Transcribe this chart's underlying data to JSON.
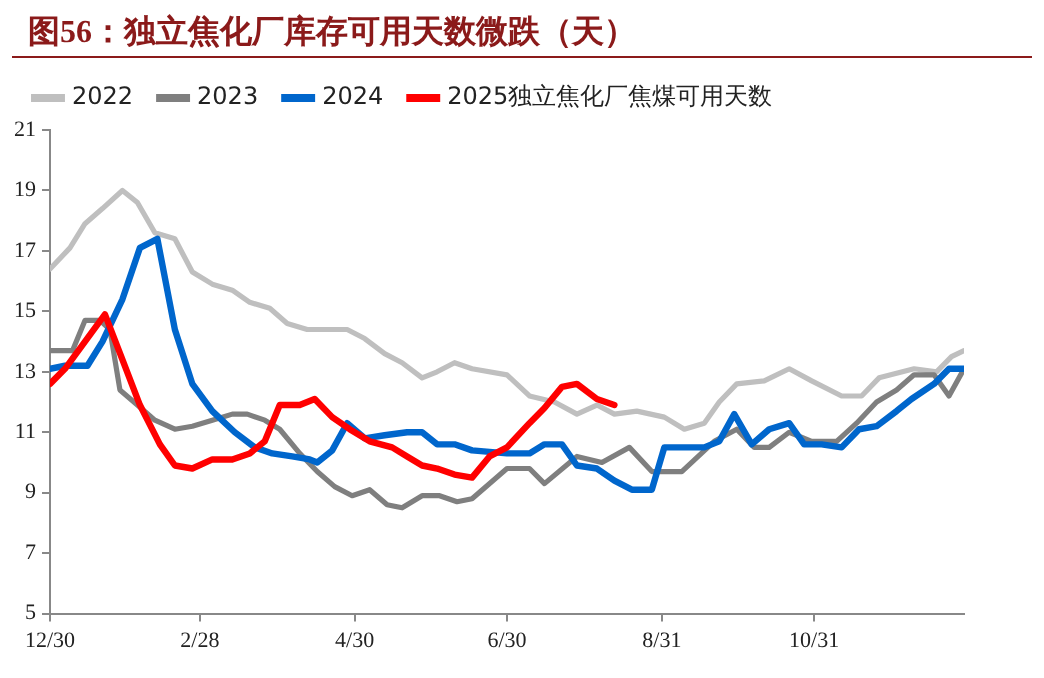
{
  "chart_data": {
    "type": "line",
    "title": "图56：独立焦化厂库存可用天数微跌（天）",
    "xlim": [
      "2023-12-30",
      "2024-12-30"
    ],
    "xticks": [
      {
        "value": "2023-12-30",
        "label": "12/30"
      },
      {
        "value": "2024-02-28",
        "label": "2/28"
      },
      {
        "value": "2024-04-30",
        "label": "4/30"
      },
      {
        "value": "2024-06-30",
        "label": "6/30"
      },
      {
        "value": "2024-08-31",
        "label": "8/31"
      },
      {
        "value": "2024-10-31",
        "label": "10/31"
      }
    ],
    "ylim": [
      5,
      21
    ],
    "yticks": [
      5,
      7,
      9,
      11,
      13,
      15,
      17,
      19,
      21
    ],
    "grid": false,
    "legend": "top",
    "marker": "none",
    "line_style": "solid",
    "series": [
      {
        "name": "2022",
        "color": "#bfbfbf",
        "x": [
          "2023-12-30",
          "2024-01-07",
          "2024-01-13",
          "2024-01-20",
          "2024-01-28",
          "2024-02-03",
          "2024-02-10",
          "2024-02-18",
          "2024-02-25",
          "2024-03-04",
          "2024-03-12",
          "2024-03-19",
          "2024-03-27",
          "2024-04-03",
          "2024-04-11",
          "2024-04-18",
          "2024-04-27",
          "2024-05-04",
          "2024-05-12",
          "2024-05-19",
          "2024-05-27",
          "2024-06-02",
          "2024-06-09",
          "2024-06-16",
          "2024-06-30",
          "2024-07-09",
          "2024-07-19",
          "2024-07-28",
          "2024-08-05",
          "2024-08-12",
          "2024-08-21",
          "2024-09-01",
          "2024-09-09",
          "2024-09-17",
          "2024-09-23",
          "2024-09-30",
          "2024-10-11",
          "2024-10-21",
          "2024-10-30",
          "2024-11-11",
          "2024-11-19",
          "2024-11-26",
          "2024-12-10",
          "2024-12-19",
          "2024-12-25",
          "2024-12-30"
        ],
        "values": [
          16.4,
          17.1,
          17.9,
          18.4,
          19.0,
          18.6,
          17.6,
          17.4,
          16.3,
          15.9,
          15.7,
          15.3,
          15.1,
          14.6,
          14.4,
          14.4,
          14.4,
          14.1,
          13.6,
          13.3,
          12.8,
          13.0,
          13.3,
          13.1,
          12.9,
          12.2,
          12.0,
          11.6,
          11.9,
          11.6,
          11.7,
          11.5,
          11.1,
          11.3,
          12.0,
          12.6,
          12.7,
          13.1,
          12.7,
          12.2,
          12.2,
          12.8,
          13.1,
          13.0,
          13.5,
          13.7
        ]
      },
      {
        "name": "2023",
        "color": "#7f7f7f",
        "x": [
          "2023-12-30",
          "2024-01-08",
          "2024-01-13",
          "2024-01-19",
          "2024-01-23",
          "2024-01-27",
          "2024-02-03",
          "2024-02-10",
          "2024-02-18",
          "2024-02-25",
          "2024-03-04",
          "2024-03-12",
          "2024-03-18",
          "2024-03-25",
          "2024-03-31",
          "2024-04-08",
          "2024-04-15",
          "2024-04-22",
          "2024-04-29",
          "2024-05-06",
          "2024-05-13",
          "2024-05-19",
          "2024-05-27",
          "2024-06-03",
          "2024-06-10",
          "2024-06-16",
          "2024-06-30",
          "2024-07-09",
          "2024-07-15",
          "2024-07-28",
          "2024-08-07",
          "2024-08-18",
          "2024-08-27",
          "2024-09-08",
          "2024-09-21",
          "2024-09-30",
          "2024-10-07",
          "2024-10-13",
          "2024-10-21",
          "2024-10-30",
          "2024-11-09",
          "2024-11-17",
          "2024-11-25",
          "2024-12-03",
          "2024-12-10",
          "2024-12-18",
          "2024-12-24",
          "2024-12-30"
        ],
        "values": [
          13.7,
          13.7,
          14.7,
          14.7,
          14.4,
          12.4,
          11.9,
          11.4,
          11.1,
          11.2,
          11.4,
          11.6,
          11.6,
          11.4,
          11.1,
          10.3,
          9.7,
          9.2,
          8.9,
          9.1,
          8.6,
          8.5,
          8.9,
          8.9,
          8.7,
          8.8,
          9.8,
          9.8,
          9.3,
          10.2,
          10.0,
          10.5,
          9.7,
          9.7,
          10.7,
          11.1,
          10.5,
          10.5,
          11.0,
          10.7,
          10.7,
          11.3,
          12.0,
          12.4,
          12.9,
          12.9,
          12.2,
          13.1
        ]
      },
      {
        "name": "2024",
        "color": "#0066cc",
        "x": [
          "2023-12-30",
          "2024-01-05",
          "2024-01-14",
          "2024-01-20",
          "2024-01-28",
          "2024-02-04",
          "2024-02-11",
          "2024-02-18",
          "2024-02-25",
          "2024-03-04",
          "2024-03-13",
          "2024-03-21",
          "2024-03-28",
          "2024-04-05",
          "2024-04-12",
          "2024-04-15",
          "2024-04-21",
          "2024-04-27",
          "2024-05-04",
          "2024-05-12",
          "2024-05-21",
          "2024-05-27",
          "2024-06-02",
          "2024-06-09",
          "2024-06-16",
          "2024-06-30",
          "2024-07-09",
          "2024-07-15",
          "2024-07-22",
          "2024-07-28",
          "2024-08-05",
          "2024-08-12",
          "2024-08-19",
          "2024-08-27",
          "2024-09-01",
          "2024-09-17",
          "2024-09-23",
          "2024-09-29",
          "2024-10-06",
          "2024-10-13",
          "2024-10-21",
          "2024-10-27",
          "2024-11-03",
          "2024-11-11",
          "2024-11-18",
          "2024-11-25",
          "2024-12-03",
          "2024-12-09",
          "2024-12-18",
          "2024-12-24",
          "2024-12-30"
        ],
        "values": [
          13.1,
          13.2,
          13.2,
          14.0,
          15.4,
          17.1,
          17.4,
          14.4,
          12.6,
          11.7,
          11.0,
          10.5,
          10.3,
          10.2,
          10.1,
          10.0,
          10.4,
          11.3,
          10.8,
          10.9,
          11.0,
          11.0,
          10.6,
          10.6,
          10.4,
          10.3,
          10.3,
          10.6,
          10.6,
          9.9,
          9.8,
          9.4,
          9.1,
          9.1,
          10.5,
          10.5,
          10.7,
          11.6,
          10.6,
          11.1,
          11.3,
          10.6,
          10.6,
          10.5,
          11.1,
          11.2,
          11.7,
          12.1,
          12.6,
          13.1,
          13.1
        ]
      },
      {
        "name": "2025独立焦化厂焦煤可用天数",
        "color": "#ff0000",
        "x": [
          "2023-12-30",
          "2024-01-05",
          "2024-01-13",
          "2024-01-21",
          "2024-01-28",
          "2024-02-04",
          "2024-02-12",
          "2024-02-18",
          "2024-02-25",
          "2024-03-04",
          "2024-03-12",
          "2024-03-19",
          "2024-03-25",
          "2024-03-31",
          "2024-04-08",
          "2024-04-14",
          "2024-04-21",
          "2024-04-28",
          "2024-05-06",
          "2024-05-15",
          "2024-05-21",
          "2024-05-27",
          "2024-06-02",
          "2024-06-09",
          "2024-06-16",
          "2024-06-23",
          "2024-06-30",
          "2024-07-09",
          "2024-07-15",
          "2024-07-22",
          "2024-07-28",
          "2024-08-05",
          "2024-08-12"
        ],
        "values": [
          12.6,
          13.1,
          14.0,
          14.9,
          13.4,
          11.9,
          10.6,
          9.9,
          9.8,
          10.1,
          10.1,
          10.3,
          10.7,
          11.9,
          11.9,
          12.1,
          11.5,
          11.1,
          10.7,
          10.5,
          10.2,
          9.9,
          9.8,
          9.6,
          9.5,
          10.2,
          10.5,
          11.3,
          11.8,
          12.5,
          12.6,
          12.1,
          11.9
        ]
      }
    ]
  }
}
